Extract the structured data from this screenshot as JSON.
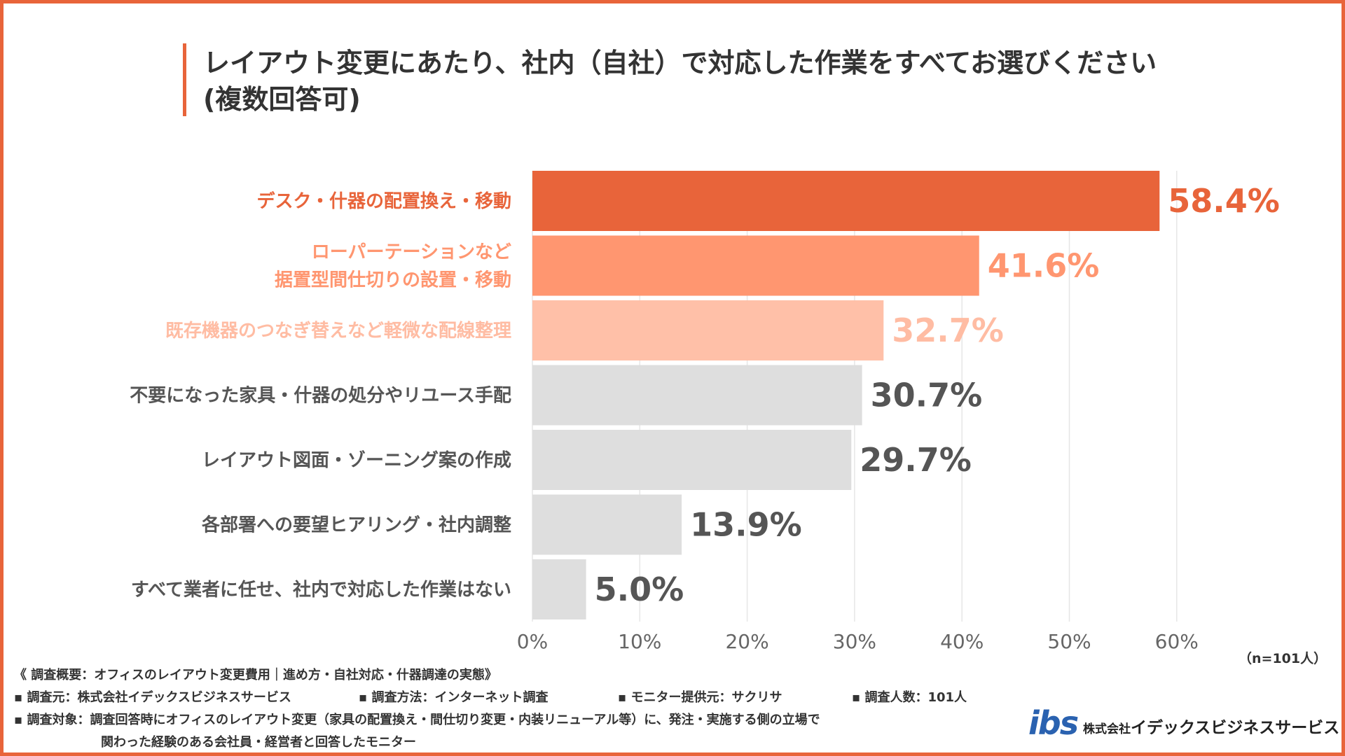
{
  "title": {
    "line1": "レイアウト変更にあたり、社内（自社）で対応した作業をすべてお選びください",
    "line2": "(複数回答可)"
  },
  "chart_data": {
    "type": "bar",
    "orientation": "horizontal",
    "title": "レイアウト変更にあたり、社内（自社）で対応した作業をすべてお選びください (複数回答可)",
    "categories": [
      [
        "デスク・什器の配置換え・移動"
      ],
      [
        "ローパーテーションなど",
        "据置型間仕切りの設置・移動"
      ],
      [
        "既存機器のつなぎ替えなど軽微な配線整理"
      ],
      [
        "不要になった家具・什器の処分やリユース手配"
      ],
      [
        "レイアウト図面・ゾーニング案の作成"
      ],
      [
        "各部署への要望ヒアリング・社内調整"
      ],
      [
        "すべて業者に任せ、社内で対応した作業はない"
      ]
    ],
    "values": [
      58.4,
      41.6,
      32.7,
      30.7,
      29.7,
      13.9,
      5.0
    ],
    "value_labels": [
      "58.4%",
      "41.6%",
      "32.7%",
      "30.7%",
      "29.7%",
      "13.9%",
      "5.0%"
    ],
    "bar_colors": [
      "#E8643A",
      "#FF9670",
      "#FFC0A8",
      "#DEDEDE",
      "#DEDEDE",
      "#DEDEDE",
      "#DEDEDE"
    ],
    "label_colors": [
      "#E8643A",
      "#FF9670",
      "#FFBCA3",
      "#555555",
      "#555555",
      "#555555",
      "#555555"
    ],
    "xlim": [
      0,
      70
    ],
    "xticks": [
      0,
      10,
      20,
      30,
      40,
      50,
      60
    ],
    "xtick_labels": [
      "0%",
      "10%",
      "20%",
      "30%",
      "40%",
      "50%",
      "60%"
    ],
    "grid": "vertical",
    "legend": "none"
  },
  "sample_note": "（n=101人）",
  "notes": {
    "overview": "《 調査概要：オフィスのレイアウト変更費用｜進め方・自社対応・什器調達の実態》",
    "source": "▪ 調査元：株式会社イデックスビジネスサービス",
    "method": "▪ 調査方法：インターネット調査",
    "monitor": "▪ モニター提供元：サクリサ",
    "count": "▪ 調査人数：101人",
    "target1": "▪ 調査対象：調査回答時にオフィスのレイアウト変更（家具の配置換え・間仕切り変更・内装リニューアル等）に、発注・実施する側の立場で",
    "target2": "関わった経験のある会社員・経営者と回答したモニター"
  },
  "logo": {
    "mark": "ibs",
    "company_prefix": "株式会社",
    "company_name": "イデックスビジネスサービス"
  },
  "colors": {
    "accent": "#E8643A",
    "text": "#333333"
  }
}
